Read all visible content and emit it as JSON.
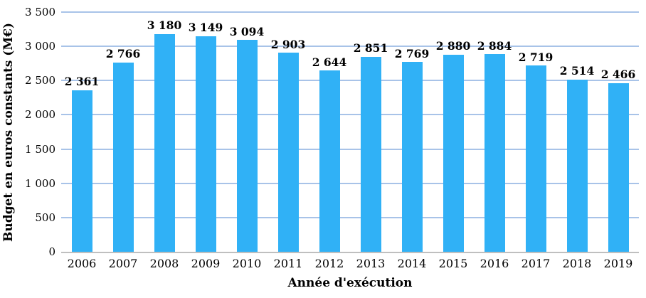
{
  "chart_data": {
    "type": "bar",
    "title": "",
    "xlabel": "Année d'exécution",
    "ylabel": "Budget en euros constants (M€)",
    "categories": [
      "2006",
      "2007",
      "2008",
      "2009",
      "2010",
      "2011",
      "2012",
      "2013",
      "2014",
      "2015",
      "2016",
      "2017",
      "2018",
      "2019"
    ],
    "values": [
      2361,
      2766,
      3180,
      3149,
      3094,
      2903,
      2644,
      2851,
      2769,
      2880,
      2884,
      2719,
      2514,
      2466
    ],
    "value_labels": [
      "2 361",
      "2 766",
      "3 180",
      "3 149",
      "3 094",
      "2 903",
      "2 644",
      "2 851",
      "2 769",
      "2 880",
      "2 884",
      "2 719",
      "2 514",
      "2 466"
    ],
    "ylim": [
      0,
      3500
    ],
    "ytick_step": 500,
    "ytick_labels": [
      "0",
      "500",
      "1 000",
      "1 500",
      "2 000",
      "2 500",
      "3 000",
      "3 500"
    ],
    "grid": true,
    "legend": "none",
    "colors": {
      "bar": "#30b1f6",
      "gridline": "#a8c3e8",
      "axis_line": "#bfbfbf",
      "text": "#000000",
      "background": "#ffffff"
    }
  }
}
